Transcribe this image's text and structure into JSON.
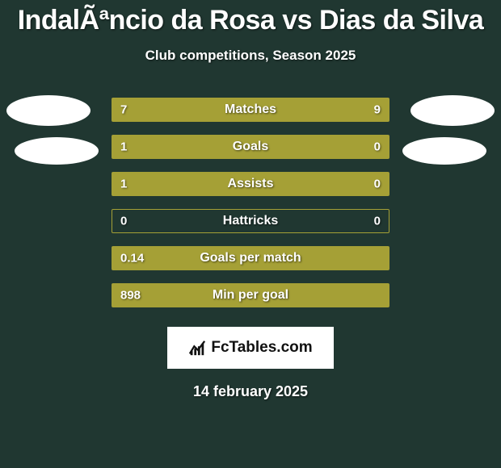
{
  "title": "IndalÃªncio da Rosa vs Dias da Silva",
  "subtitle": "Club competitions, Season 2025",
  "date": "14 february 2025",
  "brand": "FcTables.com",
  "colors": {
    "background": "#203731",
    "left_bar": "#a5a036",
    "right_bar": "#a5a036",
    "border": "#a5a036",
    "avatar": "#ffffff"
  },
  "stats": [
    {
      "label": "Matches",
      "left_val": "7",
      "right_val": "9",
      "left_pct": 40,
      "right_pct": 60
    },
    {
      "label": "Goals",
      "left_val": "1",
      "right_val": "0",
      "left_pct": 76,
      "right_pct": 24
    },
    {
      "label": "Assists",
      "left_val": "1",
      "right_val": "0",
      "left_pct": 76,
      "right_pct": 24
    },
    {
      "label": "Hattricks",
      "left_val": "0",
      "right_val": "0",
      "left_pct": 0,
      "right_pct": 0
    },
    {
      "label": "Goals per match",
      "left_val": "0.14",
      "right_val": "",
      "left_pct": 100,
      "right_pct": 0
    },
    {
      "label": "Min per goal",
      "left_val": "898",
      "right_val": "",
      "left_pct": 100,
      "right_pct": 0
    }
  ]
}
